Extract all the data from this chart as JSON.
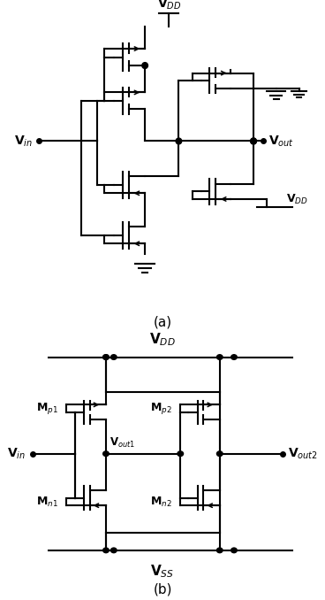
{
  "fig_width": 3.68,
  "fig_height": 6.78,
  "dpi": 100,
  "bg_color": "white",
  "line_color": "black",
  "line_width": 1.5,
  "label_a": "(a)",
  "label_b": "(b)",
  "vdd_label": "$\\mathbf{V}_{DD}$",
  "vss_label": "$\\mathbf{V}_{SS}$",
  "vin_label": "$\\mathbf{V}_{in}$",
  "vout_label": "$\\mathbf{V}_{out}$",
  "vout1_label": "$\\mathbf{V}_{out1}$",
  "vout2_label": "$\\mathbf{V}_{out2}$",
  "mp1_label": "$\\mathbf{M}_{p1}$",
  "mp2_label": "$\\mathbf{M}_{p2}$",
  "mn1_label": "$\\mathbf{M}_{n1}$",
  "mn2_label": "$\\mathbf{M}_{n2}$"
}
